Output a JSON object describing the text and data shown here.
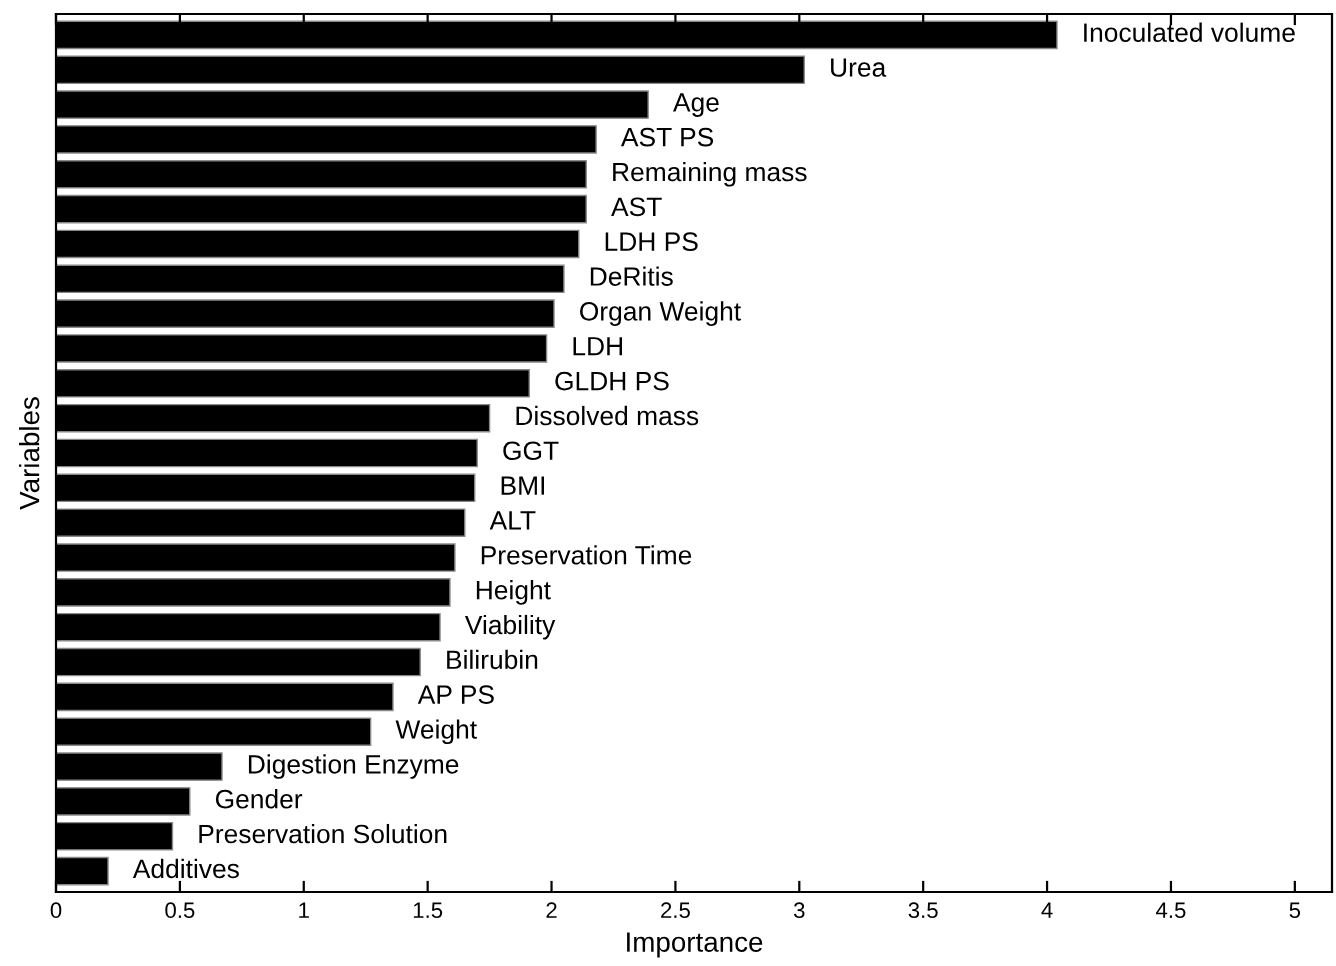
{
  "chart_data": {
    "type": "bar",
    "orientation": "horizontal",
    "xlabel": "Importance",
    "ylabel": "Variables",
    "categories": [
      "Inoculated volume",
      "Urea",
      "Age",
      "AST PS",
      "Remaining mass",
      "AST",
      "LDH PS",
      "DeRitis",
      "Organ Weight",
      "LDH",
      "GLDH PS",
      "Dissolved mass",
      "GGT",
      "BMI",
      "ALT",
      "Preservation Time",
      "Height",
      "Viability",
      "Bilirubin",
      "AP PS",
      "Weight",
      "Digestion Enzyme",
      "Gender",
      "Preservation Solution",
      "Additives"
    ],
    "values": [
      4.04,
      3.02,
      2.39,
      2.18,
      2.14,
      2.14,
      2.11,
      2.05,
      2.01,
      1.98,
      1.91,
      1.75,
      1.7,
      1.69,
      1.65,
      1.61,
      1.59,
      1.55,
      1.47,
      1.36,
      1.27,
      0.67,
      0.54,
      0.47,
      0.21
    ],
    "color": "#000000",
    "xlim": [
      0,
      5.15
    ],
    "xticks": [
      0,
      0.5,
      1,
      1.5,
      2,
      2.5,
      3,
      3.5,
      4,
      4.5,
      5
    ],
    "tick_labels": "x",
    "grid": false
  }
}
